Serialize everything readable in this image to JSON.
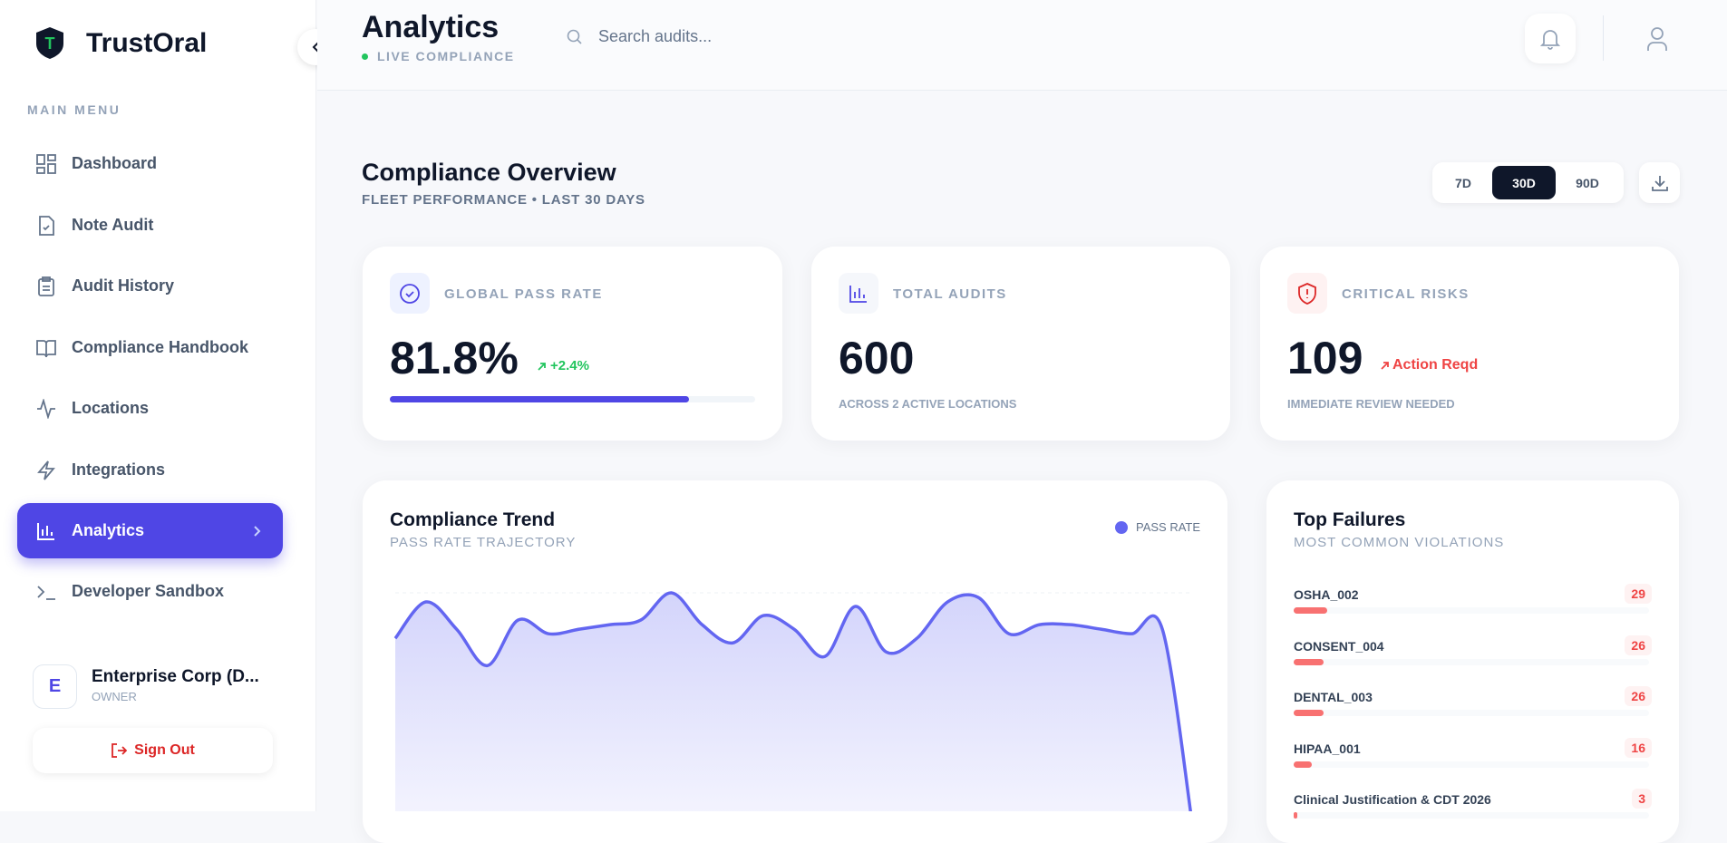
{
  "sidebar": {
    "brand": "TrustOral",
    "menu_label": "MAIN MENU",
    "menu": [
      "Dashboard",
      "Note Audit",
      "Audit History",
      "Compliance Handbook",
      "Locations",
      "Integrations",
      "Analytics",
      "Developer Sandbox"
    ],
    "user": {
      "initial": "E",
      "name": "Enterprise Corp (D...",
      "role": "OWNER"
    },
    "sign_out": "Sign Out"
  },
  "header": {
    "title": "Analytics",
    "status": "LIVE COMPLIANCE",
    "search_placeholder": "Search audits..."
  },
  "overview": {
    "title": "Compliance Overview",
    "subtitle": "FLEET PERFORMANCE • LAST 30 DAYS",
    "ranges": [
      "7D",
      "30D",
      "90D"
    ]
  },
  "stats": [
    {
      "label": "GLOBAL PASS RATE",
      "value": 81.8,
      "value_label": "81.8%",
      "delta": "+2.4%"
    },
    {
      "label": "TOTAL AUDITS",
      "value": 600,
      "note": "ACROSS 2 ACTIVE LOCATIONS"
    },
    {
      "label": "CRITICAL RISKS",
      "value": 109,
      "delta": "Action Reqd",
      "note": "IMMEDIATE REVIEW NEEDED"
    }
  ],
  "trend": {
    "type": "line",
    "title": "Compliance Trend",
    "subtitle": "PASS RATE TRAJECTORY",
    "legend": "PASS RATE",
    "color": "#6366f1",
    "values": [
      82,
      90,
      84,
      76,
      86,
      83,
      84,
      85,
      86,
      92,
      85,
      81,
      87,
      84,
      78,
      89,
      79,
      82,
      90,
      91,
      83,
      85,
      85,
      84,
      83,
      84,
      40
    ]
  },
  "failures": {
    "title": "Top Failures",
    "subtitle": "MOST COMMON VIOLATIONS",
    "items": [
      {
        "name": "OSHA_002",
        "count": 29
      },
      {
        "name": "CONSENT_004",
        "count": 26
      },
      {
        "name": "DENTAL_003",
        "count": 26
      },
      {
        "name": "HIPAA_001",
        "count": 16
      },
      {
        "name": "Clinical Justification & CDT 2026",
        "count": 3
      }
    ]
  }
}
